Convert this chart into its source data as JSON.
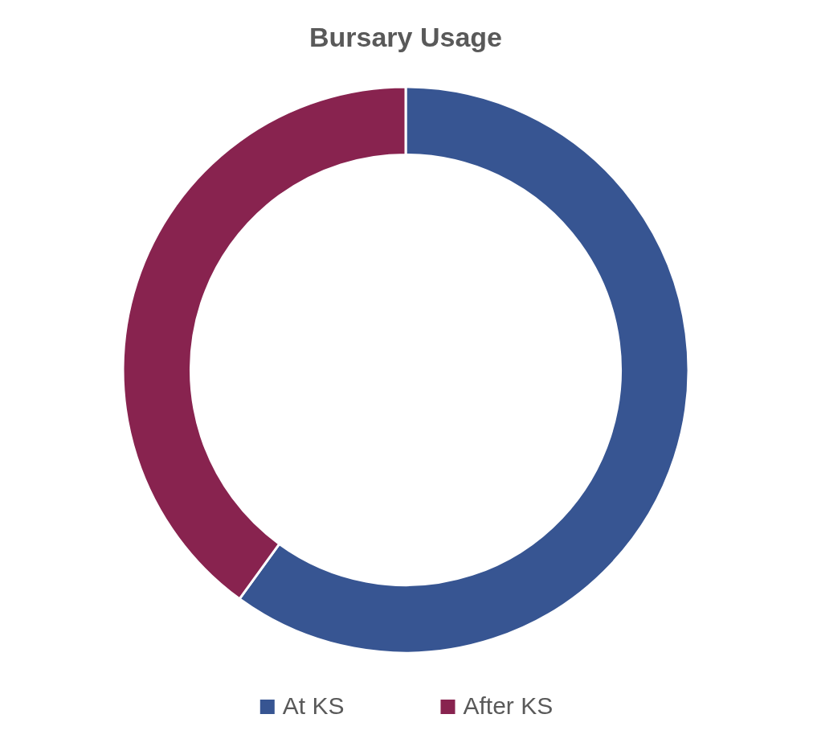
{
  "chart_data": {
    "type": "donut",
    "title": "Bursary Usage",
    "categories": [
      "At KS",
      "After KS"
    ],
    "values": [
      60,
      40
    ],
    "colors": [
      "#375592",
      "#88234f"
    ],
    "legend": "bottom"
  }
}
